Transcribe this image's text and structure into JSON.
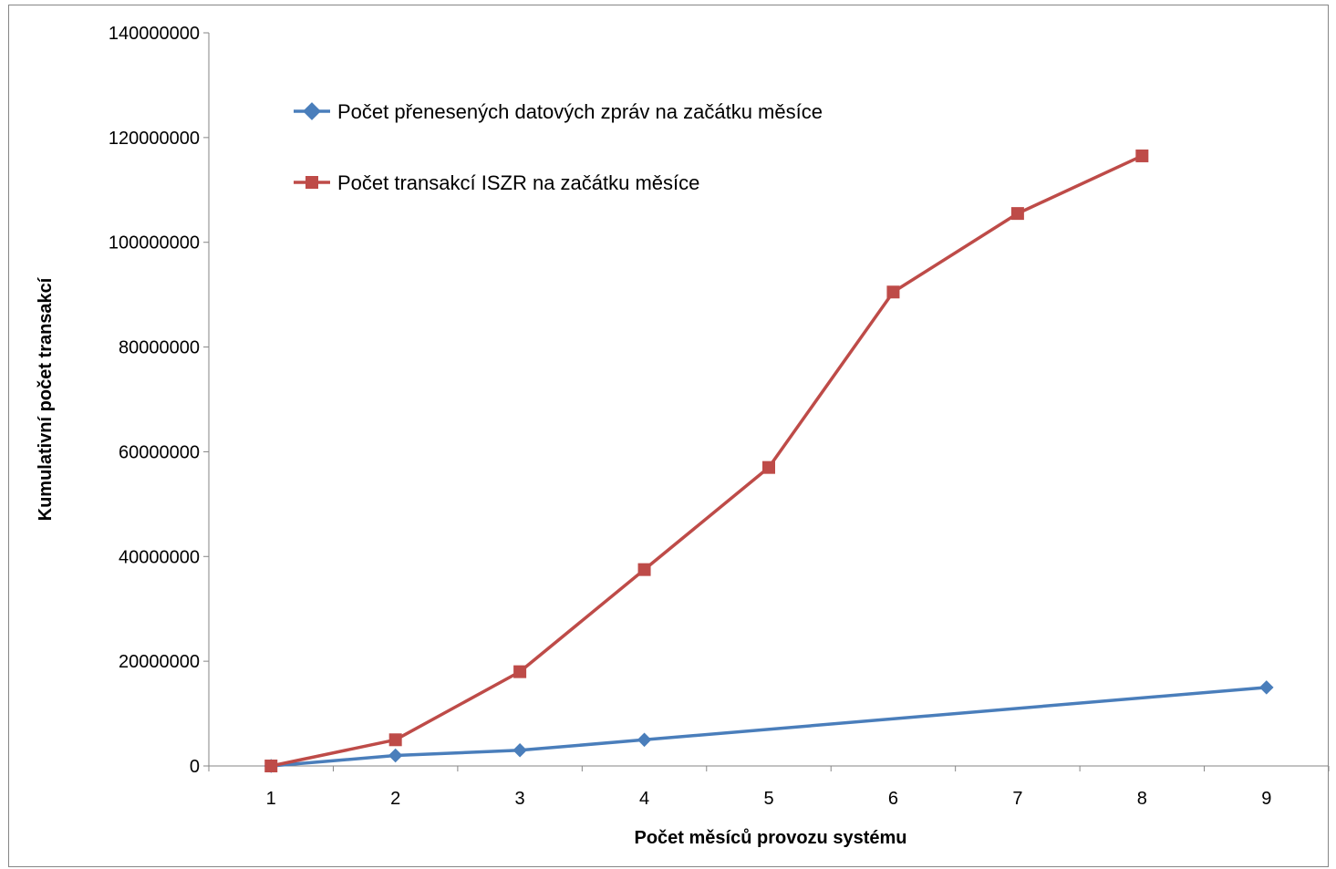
{
  "chart_data": {
    "type": "line",
    "title": "",
    "xlabel": "Počet měsíců provozu systému",
    "ylabel": "Kumulativní počet transakcí",
    "x_categories": [
      "1",
      "2",
      "3",
      "4",
      "5",
      "6",
      "7",
      "8",
      "9"
    ],
    "ylim": [
      0,
      140000000
    ],
    "y_ticks": [
      "0",
      "20000000",
      "40000000",
      "60000000",
      "80000000",
      "100000000",
      "120000000",
      "140000000"
    ],
    "y_tick_values": [
      0,
      20000000,
      40000000,
      60000000,
      80000000,
      100000000,
      120000000,
      140000000
    ],
    "grid": false,
    "legend_placement": "top-left inside plot",
    "series": [
      {
        "name": "Počet přenesených datových zpráv na začátku měsíce",
        "color": "#4A7EBB",
        "marker": "diamond",
        "x": [
          1,
          2,
          3,
          4,
          9
        ],
        "values": [
          0,
          2000000,
          3000000,
          5000000,
          15000000
        ]
      },
      {
        "name": "Počet transakcí ISZR na začátku měsíce",
        "color": "#BE4B48",
        "marker": "square",
        "x": [
          1,
          2,
          3,
          4,
          5,
          6,
          7,
          8
        ],
        "values": [
          0,
          5000000,
          18000000,
          37500000,
          57000000,
          90500000,
          105500000,
          116500000
        ]
      }
    ]
  }
}
